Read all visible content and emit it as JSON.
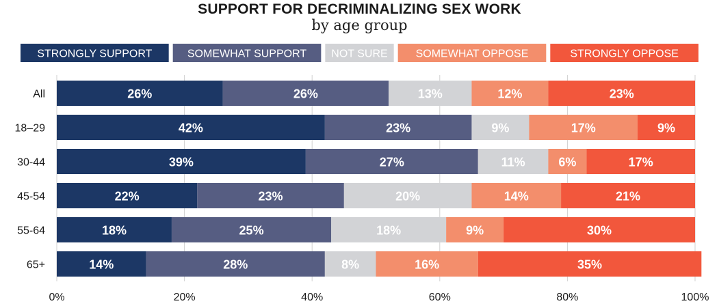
{
  "chart_data": {
    "type": "bar",
    "orientation": "horizontal",
    "stacked": true,
    "title": "SUPPORT FOR DECRIMINALIZING SEX WORK",
    "subtitle": "by age group",
    "xlabel": "",
    "ylabel": "",
    "xlim": [
      0,
      100
    ],
    "x_ticks": [
      "0%",
      "20%",
      "40%",
      "60%",
      "80%",
      "100%"
    ],
    "categories": [
      "All",
      "18–29",
      "30-44",
      "45-54",
      "55-64",
      "65+"
    ],
    "legend_position": "top",
    "grid": true,
    "series": [
      {
        "name": "STRONGLY SUPPORT",
        "color": "#1c3765",
        "label_color": "#ffffff",
        "values": [
          26,
          42,
          39,
          22,
          18,
          14
        ],
        "labels": [
          "26%",
          "42%",
          "39%",
          "22%",
          "18%",
          "14%"
        ]
      },
      {
        "name": "SOMEWHAT SUPPORT",
        "color": "#565d82",
        "label_color": "#ffffff",
        "values": [
          26,
          23,
          27,
          23,
          25,
          28
        ],
        "labels": [
          "26%",
          "23%",
          "27%",
          "23%",
          "25%",
          "28%"
        ]
      },
      {
        "name": "NOT SURE",
        "color": "#d2d3d6",
        "label_color": "#ffffff",
        "values": [
          13,
          9,
          11,
          20,
          18,
          8
        ],
        "labels": [
          "13%",
          "9%",
          "11%",
          "20%",
          "18%",
          "8%"
        ]
      },
      {
        "name": "SOMEWHAT OPPOSE",
        "color": "#f38e6c",
        "label_color": "#ffffff",
        "values": [
          12,
          17,
          6,
          14,
          9,
          16
        ],
        "labels": [
          "12%",
          "17%",
          "6%",
          "14%",
          "9%",
          "16%"
        ]
      },
      {
        "name": "STRONGLY OPPOSE",
        "color": "#f2573c",
        "label_color": "#ffffff",
        "values": [
          23,
          9,
          17,
          21,
          30,
          35
        ],
        "labels": [
          "23%",
          "9%",
          "17%",
          "21%",
          "30%",
          "35%"
        ]
      }
    ]
  }
}
